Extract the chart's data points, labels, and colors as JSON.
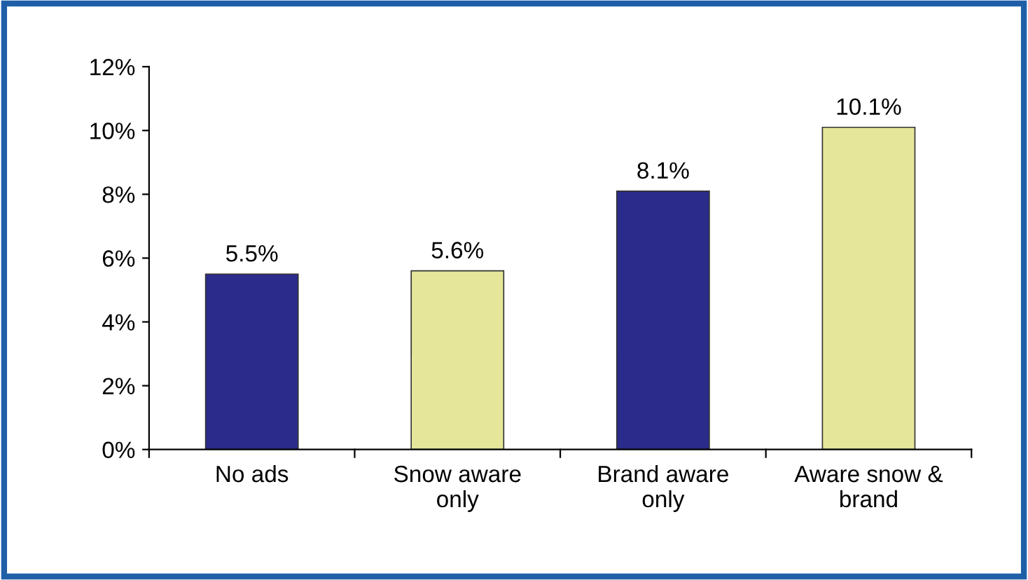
{
  "chart_data": {
    "type": "bar",
    "categories": [
      "No ads",
      "Snow aware\nonly",
      "Brand aware\nonly",
      "Aware snow &\nbrand"
    ],
    "values": [
      5.5,
      5.6,
      8.1,
      10.1
    ],
    "colors": [
      "#2b2b8c",
      "#e6e69a",
      "#2b2b8c",
      "#e6e69a"
    ],
    "value_labels": [
      "5.5%",
      "5.6%",
      "8.1%",
      "10.1%"
    ],
    "ylim": [
      0,
      12
    ],
    "yticks": [
      {
        "value": 0,
        "label": "0%"
      },
      {
        "value": 2,
        "label": "2%"
      },
      {
        "value": 4,
        "label": "4%"
      },
      {
        "value": 6,
        "label": "6%"
      },
      {
        "value": 8,
        "label": "8%"
      },
      {
        "value": 10,
        "label": "10%"
      },
      {
        "value": 12,
        "label": "12%"
      }
    ],
    "grid": false,
    "legend": false
  }
}
